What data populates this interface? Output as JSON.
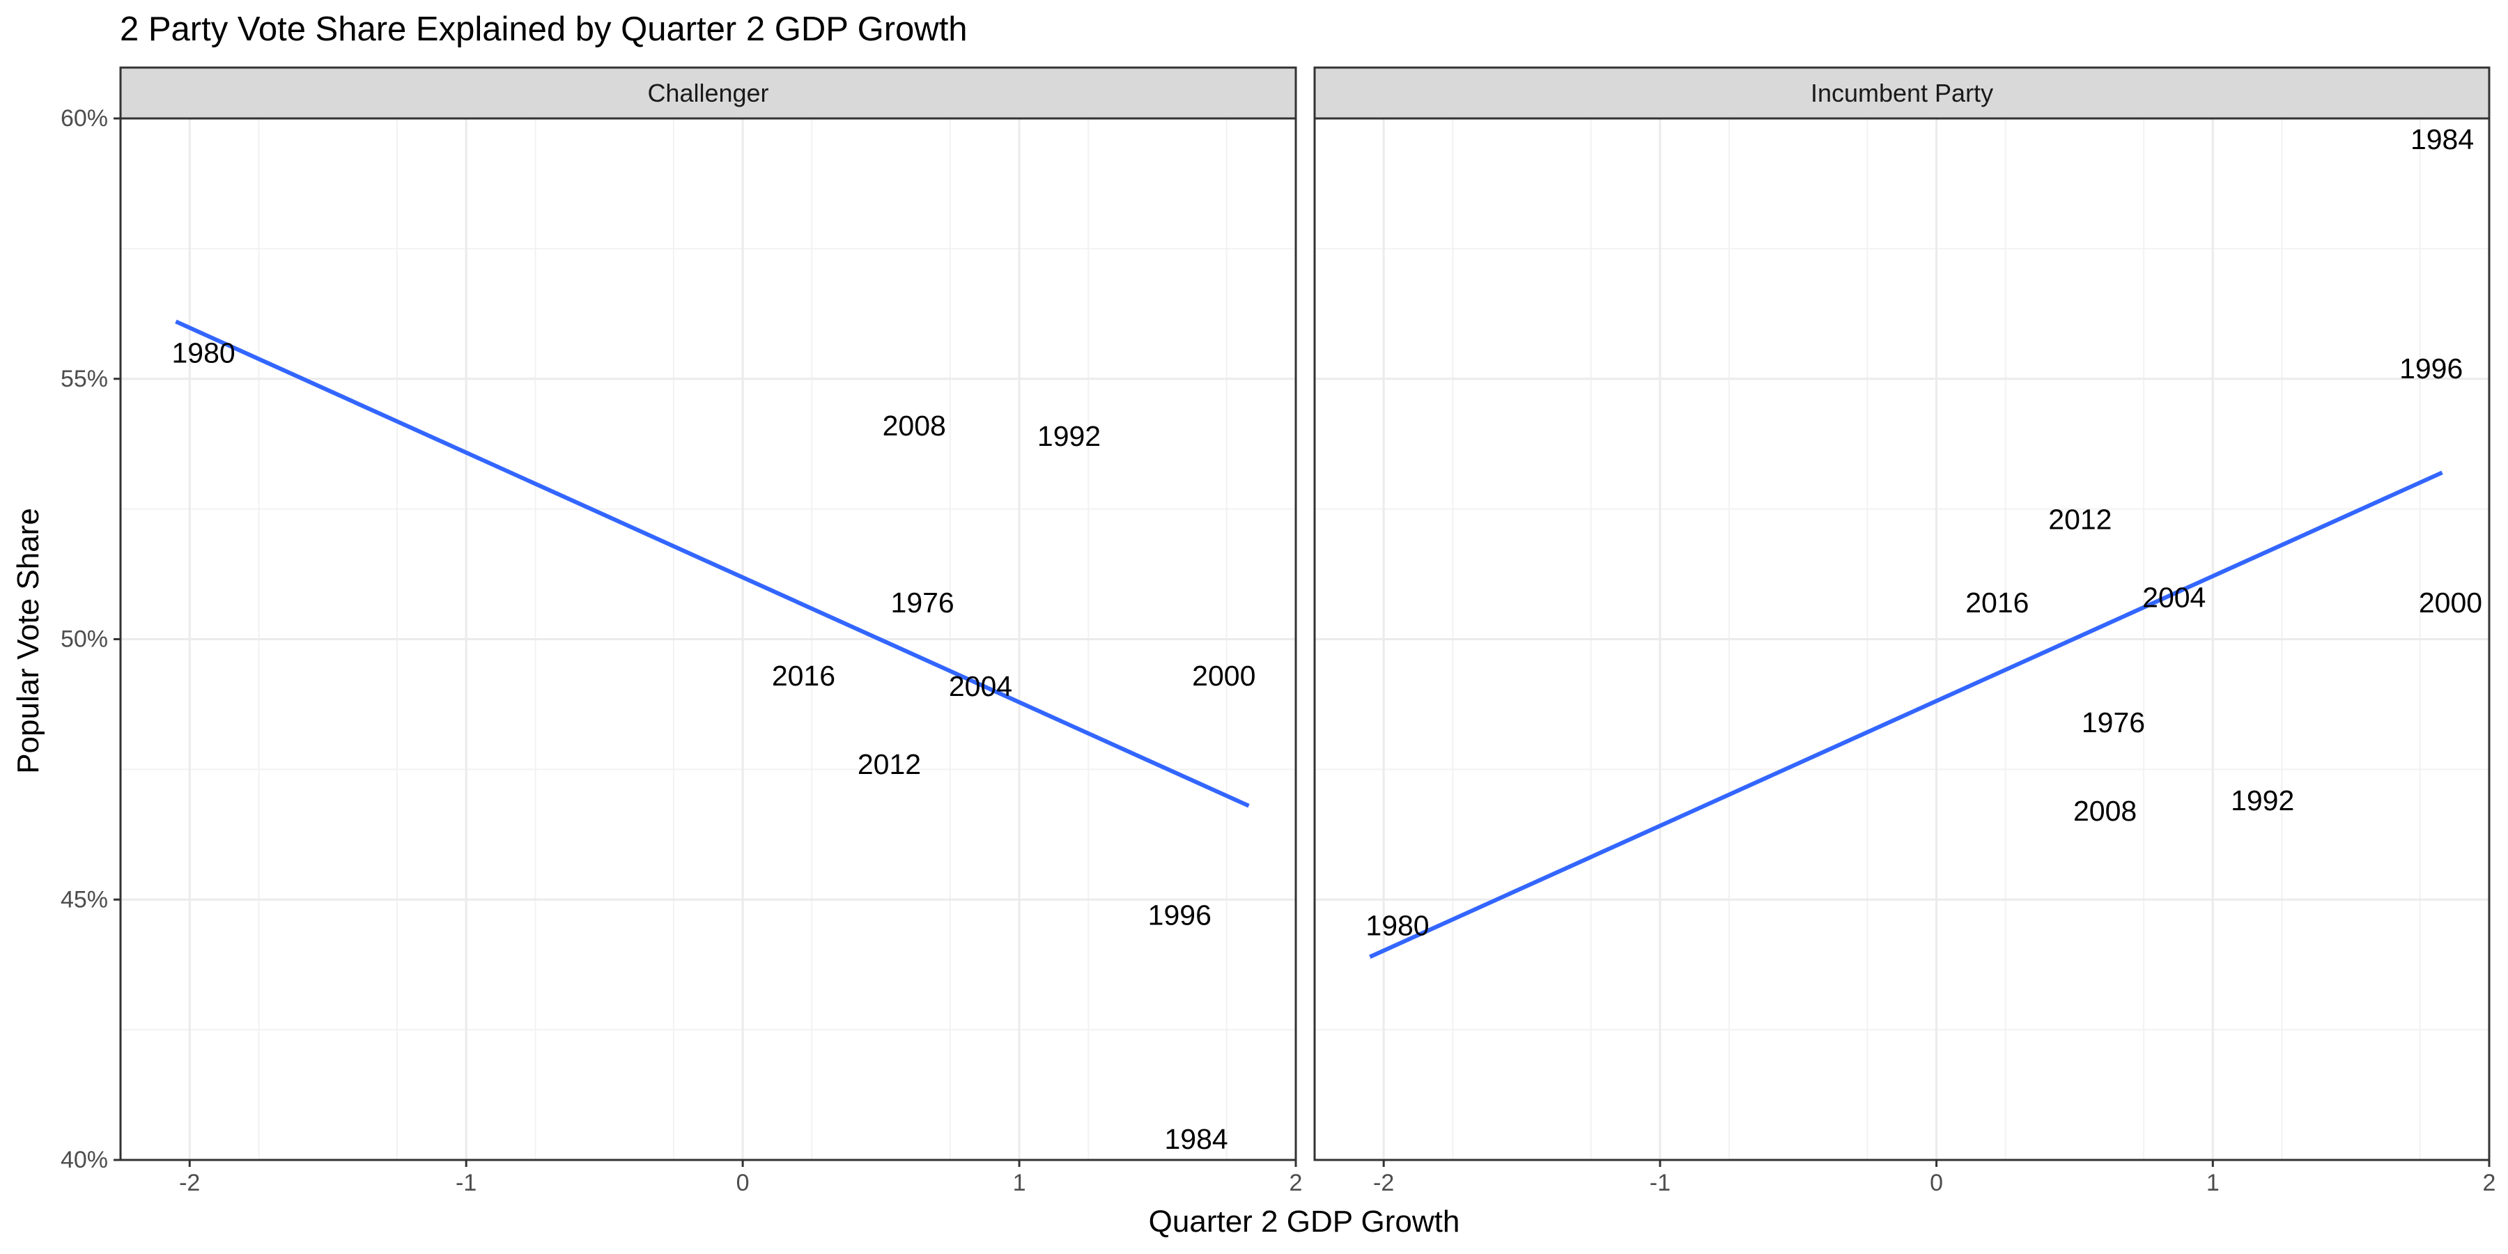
{
  "chart_data": {
    "type": "scatter",
    "title": "2 Party Vote Share Explained by Quarter 2 GDP Growth",
    "xlabel": "Quarter 2 GDP Growth",
    "ylabel": "Popular Vote Share",
    "xlim": [
      -2.25,
      2.0
    ],
    "ylim": [
      40,
      60
    ],
    "x_ticks": [
      -2,
      -1,
      0,
      1,
      2
    ],
    "y_ticks": [
      40,
      45,
      50,
      55,
      60
    ],
    "y_tick_labels": [
      "40%",
      "45%",
      "50%",
      "55%",
      "60%"
    ],
    "x_tick_labels": [
      "-2",
      "-1",
      "0",
      "1",
      "2"
    ],
    "grid": true,
    "line_color": "#3366ff",
    "panels": [
      {
        "name": "Challenger",
        "points": [
          {
            "label": "1980",
            "x": -1.95,
            "y": 55.5
          },
          {
            "label": "2008",
            "x": 0.62,
            "y": 54.1
          },
          {
            "label": "1992",
            "x": 1.18,
            "y": 53.9
          },
          {
            "label": "1976",
            "x": 0.65,
            "y": 50.7
          },
          {
            "label": "2016",
            "x": 0.22,
            "y": 49.3
          },
          {
            "label": "2004",
            "x": 0.86,
            "y": 49.1
          },
          {
            "label": "2000",
            "x": 1.74,
            "y": 49.3
          },
          {
            "label": "2012",
            "x": 0.53,
            "y": 47.6
          },
          {
            "label": "1996",
            "x": 1.58,
            "y": 44.7
          },
          {
            "label": "1984",
            "x": 1.64,
            "y": 40.4
          }
        ],
        "fit": {
          "x": [
            -2.05,
            1.83
          ],
          "y": [
            56.1,
            46.8
          ]
        }
      },
      {
        "name": "Incumbent Party",
        "points": [
          {
            "label": "1984",
            "x": 1.83,
            "y": 59.6
          },
          {
            "label": "1996",
            "x": 1.79,
            "y": 55.2
          },
          {
            "label": "2012",
            "x": 0.52,
            "y": 52.3
          },
          {
            "label": "2016",
            "x": 0.22,
            "y": 50.7
          },
          {
            "label": "2004",
            "x": 0.86,
            "y": 50.8
          },
          {
            "label": "2000",
            "x": 1.86,
            "y": 50.7
          },
          {
            "label": "1976",
            "x": 0.64,
            "y": 48.4
          },
          {
            "label": "2008",
            "x": 0.61,
            "y": 46.7
          },
          {
            "label": "1992",
            "x": 1.18,
            "y": 46.9
          },
          {
            "label": "1980",
            "x": -1.95,
            "y": 44.5
          }
        ],
        "fit": {
          "x": [
            -2.05,
            1.83
          ],
          "y": [
            43.9,
            53.2
          ]
        }
      }
    ]
  }
}
